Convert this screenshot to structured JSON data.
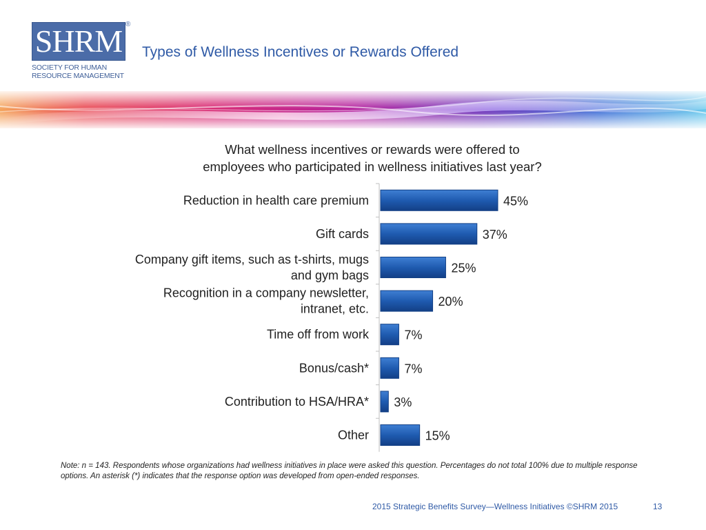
{
  "header": {
    "logo_main": "SHRM",
    "logo_registered": "®",
    "logo_line1": "SOCIETY FOR HUMAN",
    "logo_line2": "RESOURCE MANAGEMENT",
    "title": "Types of Wellness Incentives or Rewards Offered"
  },
  "colors": {
    "title": "#2f5aa6",
    "bar": "#1f5bb0",
    "bar_dark": "#123f85",
    "logo_bg": "#4b6ca8"
  },
  "question_lines": [
    "What wellness incentives or rewards were offered to",
    "employees who participated in wellness initiatives last year?"
  ],
  "chart_data": {
    "type": "bar",
    "orientation": "horizontal",
    "categories": [
      [
        "Reduction in health care premium"
      ],
      [
        "Gift cards"
      ],
      [
        "Company gift items, such as t-shirts, mugs",
        "and gym bags"
      ],
      [
        "Recognition in a company newsletter,",
        "intranet, etc."
      ],
      [
        "Time off from work"
      ],
      [
        "Bonus/cash*"
      ],
      [
        "Contribution to HSA/HRA*"
      ],
      [
        "Other"
      ]
    ],
    "values": [
      45,
      37,
      25,
      20,
      7,
      7,
      3,
      15
    ],
    "value_labels": [
      "45%",
      "37%",
      "25%",
      "20%",
      "7%",
      "7%",
      "3%",
      "15%"
    ],
    "grid": false
  },
  "footnote": "Note: n = 143. Respondents whose organizations had wellness initiatives in place were asked this question. Percentages do not total 100% due to multiple response options. An asterisk (*) indicates that the response option was developed from open-ended responses.",
  "footer": {
    "source": "2015 Strategic Benefits Survey—Wellness Initiatives ©SHRM 2015",
    "page_number": "13"
  }
}
